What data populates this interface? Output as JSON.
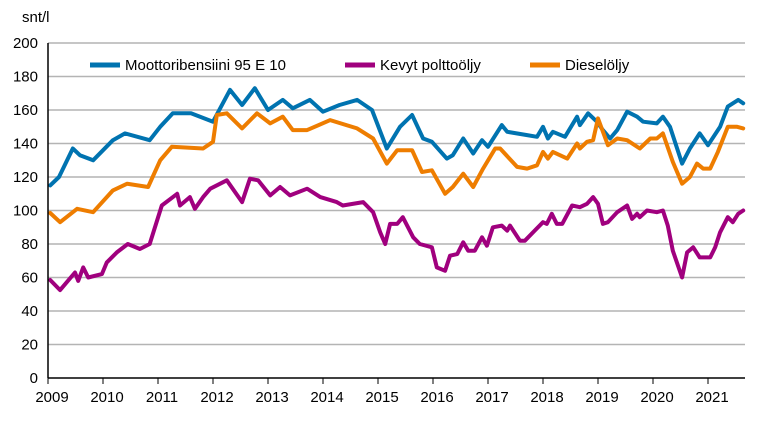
{
  "chart_data": {
    "type": "line",
    "title": "",
    "ylabel": "snt/l",
    "xlabel": "",
    "ylim": [
      0,
      200
    ],
    "xlim": [
      2009,
      2021.7
    ],
    "yticks": [
      0,
      20,
      40,
      60,
      80,
      100,
      120,
      140,
      160,
      180,
      200
    ],
    "xticks": [
      "2009",
      "2010",
      "2011",
      "2012",
      "2013",
      "2014",
      "2015",
      "2016",
      "2017",
      "2018",
      "2019",
      "2020",
      "2021"
    ],
    "grid": "horizontal",
    "legend_position": "top",
    "series": [
      {
        "name": "Moottoribensiini 95 E 10",
        "color": "#0073b0",
        "points": [
          [
            2009.04,
            115
          ],
          [
            2009.2,
            120
          ],
          [
            2009.45,
            137
          ],
          [
            2009.58,
            133
          ],
          [
            2009.82,
            130
          ],
          [
            2010.18,
            142
          ],
          [
            2010.4,
            146
          ],
          [
            2010.85,
            142
          ],
          [
            2011.04,
            150
          ],
          [
            2011.27,
            158
          ],
          [
            2011.6,
            158
          ],
          [
            2012.0,
            153
          ],
          [
            2012.31,
            172
          ],
          [
            2012.53,
            163
          ],
          [
            2012.76,
            173
          ],
          [
            2013.0,
            160
          ],
          [
            2013.27,
            166
          ],
          [
            2013.45,
            161
          ],
          [
            2013.76,
            166
          ],
          [
            2014.0,
            159
          ],
          [
            2014.3,
            163
          ],
          [
            2014.62,
            166
          ],
          [
            2014.89,
            160
          ],
          [
            2015.16,
            137
          ],
          [
            2015.4,
            150
          ],
          [
            2015.62,
            157
          ],
          [
            2015.82,
            143
          ],
          [
            2015.98,
            141
          ],
          [
            2016.25,
            131
          ],
          [
            2016.36,
            133
          ],
          [
            2016.55,
            143
          ],
          [
            2016.73,
            134
          ],
          [
            2016.89,
            142
          ],
          [
            2017.0,
            138
          ],
          [
            2017.25,
            151
          ],
          [
            2017.35,
            147
          ],
          [
            2017.71,
            145
          ],
          [
            2017.89,
            144
          ],
          [
            2018.0,
            150
          ],
          [
            2018.09,
            143
          ],
          [
            2018.18,
            147
          ],
          [
            2018.4,
            144
          ],
          [
            2018.62,
            156
          ],
          [
            2018.67,
            151
          ],
          [
            2018.82,
            158
          ],
          [
            2018.98,
            153
          ],
          [
            2019.09,
            148
          ],
          [
            2019.22,
            143
          ],
          [
            2019.35,
            148
          ],
          [
            2019.53,
            159
          ],
          [
            2019.71,
            156
          ],
          [
            2019.82,
            153
          ],
          [
            2020.07,
            152
          ],
          [
            2020.18,
            156
          ],
          [
            2020.31,
            150
          ],
          [
            2020.53,
            128
          ],
          [
            2020.67,
            137
          ],
          [
            2020.85,
            146
          ],
          [
            2021.0,
            139
          ],
          [
            2021.22,
            150
          ],
          [
            2021.36,
            162
          ],
          [
            2021.55,
            166
          ],
          [
            2021.64,
            164
          ]
        ]
      },
      {
        "name": "Kevyt polttoöljy",
        "color": "#a0007e",
        "points": [
          [
            2009.04,
            58.5
          ],
          [
            2009.22,
            52.5
          ],
          [
            2009.49,
            63
          ],
          [
            2009.55,
            58
          ],
          [
            2009.64,
            66
          ],
          [
            2009.73,
            60
          ],
          [
            2009.98,
            62
          ],
          [
            2010.07,
            69
          ],
          [
            2010.25,
            75
          ],
          [
            2010.45,
            80
          ],
          [
            2010.67,
            77
          ],
          [
            2010.85,
            80
          ],
          [
            2011.07,
            103
          ],
          [
            2011.35,
            110
          ],
          [
            2011.4,
            103
          ],
          [
            2011.58,
            108
          ],
          [
            2011.67,
            101
          ],
          [
            2011.82,
            108
          ],
          [
            2011.95,
            113
          ],
          [
            2012.25,
            118
          ],
          [
            2012.53,
            105
          ],
          [
            2012.67,
            119
          ],
          [
            2012.82,
            118
          ],
          [
            2013.04,
            109
          ],
          [
            2013.22,
            114
          ],
          [
            2013.4,
            109
          ],
          [
            2013.71,
            113
          ],
          [
            2013.95,
            108
          ],
          [
            2014.25,
            105
          ],
          [
            2014.36,
            103
          ],
          [
            2014.73,
            105
          ],
          [
            2014.91,
            99
          ],
          [
            2015.04,
            87
          ],
          [
            2015.13,
            80
          ],
          [
            2015.22,
            92
          ],
          [
            2015.35,
            92
          ],
          [
            2015.45,
            96
          ],
          [
            2015.64,
            84
          ],
          [
            2015.76,
            80
          ],
          [
            2015.98,
            78
          ],
          [
            2016.07,
            66
          ],
          [
            2016.22,
            64
          ],
          [
            2016.31,
            73
          ],
          [
            2016.44,
            74
          ],
          [
            2016.55,
            81
          ],
          [
            2016.64,
            76
          ],
          [
            2016.76,
            76
          ],
          [
            2016.89,
            84
          ],
          [
            2016.98,
            79
          ],
          [
            2017.09,
            90
          ],
          [
            2017.25,
            91
          ],
          [
            2017.35,
            88
          ],
          [
            2017.4,
            91
          ],
          [
            2017.58,
            82
          ],
          [
            2017.67,
            82
          ],
          [
            2017.85,
            88
          ],
          [
            2018.0,
            93
          ],
          [
            2018.07,
            92
          ],
          [
            2018.16,
            98
          ],
          [
            2018.25,
            92
          ],
          [
            2018.35,
            92
          ],
          [
            2018.53,
            103
          ],
          [
            2018.67,
            102
          ],
          [
            2018.8,
            104
          ],
          [
            2018.91,
            108
          ],
          [
            2019.0,
            104
          ],
          [
            2019.09,
            92
          ],
          [
            2019.18,
            93
          ],
          [
            2019.35,
            99
          ],
          [
            2019.53,
            103
          ],
          [
            2019.62,
            95
          ],
          [
            2019.71,
            98
          ],
          [
            2019.76,
            96
          ],
          [
            2019.89,
            100
          ],
          [
            2020.07,
            99
          ],
          [
            2020.18,
            100
          ],
          [
            2020.27,
            91
          ],
          [
            2020.36,
            76
          ],
          [
            2020.53,
            60
          ],
          [
            2020.62,
            75
          ],
          [
            2020.73,
            78
          ],
          [
            2020.85,
            72
          ],
          [
            2021.04,
            72
          ],
          [
            2021.13,
            78
          ],
          [
            2021.22,
            87
          ],
          [
            2021.36,
            96
          ],
          [
            2021.45,
            93
          ],
          [
            2021.55,
            98
          ],
          [
            2021.64,
            100
          ]
        ]
      },
      {
        "name": "Dieselöljy",
        "color": "#ee7d00",
        "points": [
          [
            2009.04,
            98.5
          ],
          [
            2009.22,
            93
          ],
          [
            2009.53,
            101
          ],
          [
            2009.82,
            99
          ],
          [
            2010.18,
            112
          ],
          [
            2010.44,
            116
          ],
          [
            2010.82,
            114
          ],
          [
            2011.04,
            130
          ],
          [
            2011.25,
            138
          ],
          [
            2011.82,
            137
          ],
          [
            2012.0,
            141
          ],
          [
            2012.07,
            157
          ],
          [
            2012.25,
            158
          ],
          [
            2012.53,
            149
          ],
          [
            2012.8,
            158
          ],
          [
            2013.04,
            152
          ],
          [
            2013.27,
            156
          ],
          [
            2013.45,
            148
          ],
          [
            2013.71,
            148
          ],
          [
            2014.13,
            154
          ],
          [
            2014.62,
            149
          ],
          [
            2014.91,
            143
          ],
          [
            2015.16,
            128
          ],
          [
            2015.35,
            136
          ],
          [
            2015.62,
            136
          ],
          [
            2015.8,
            123
          ],
          [
            2015.98,
            124
          ],
          [
            2016.22,
            110
          ],
          [
            2016.36,
            114
          ],
          [
            2016.55,
            122
          ],
          [
            2016.73,
            114
          ],
          [
            2016.91,
            125
          ],
          [
            2017.13,
            137
          ],
          [
            2017.22,
            137
          ],
          [
            2017.53,
            126
          ],
          [
            2017.71,
            125
          ],
          [
            2017.89,
            127
          ],
          [
            2018.0,
            135
          ],
          [
            2018.09,
            131
          ],
          [
            2018.18,
            135
          ],
          [
            2018.44,
            131
          ],
          [
            2018.62,
            140
          ],
          [
            2018.67,
            137
          ],
          [
            2018.8,
            141
          ],
          [
            2018.91,
            142
          ],
          [
            2019.0,
            155
          ],
          [
            2019.18,
            139
          ],
          [
            2019.35,
            143
          ],
          [
            2019.53,
            142
          ],
          [
            2019.76,
            137
          ],
          [
            2019.95,
            143
          ],
          [
            2020.07,
            143
          ],
          [
            2020.18,
            146
          ],
          [
            2020.36,
            129
          ],
          [
            2020.53,
            116
          ],
          [
            2020.67,
            120
          ],
          [
            2020.8,
            128
          ],
          [
            2020.91,
            125
          ],
          [
            2021.04,
            125
          ],
          [
            2021.18,
            135
          ],
          [
            2021.36,
            150
          ],
          [
            2021.53,
            150
          ],
          [
            2021.64,
            149
          ]
        ]
      }
    ]
  }
}
